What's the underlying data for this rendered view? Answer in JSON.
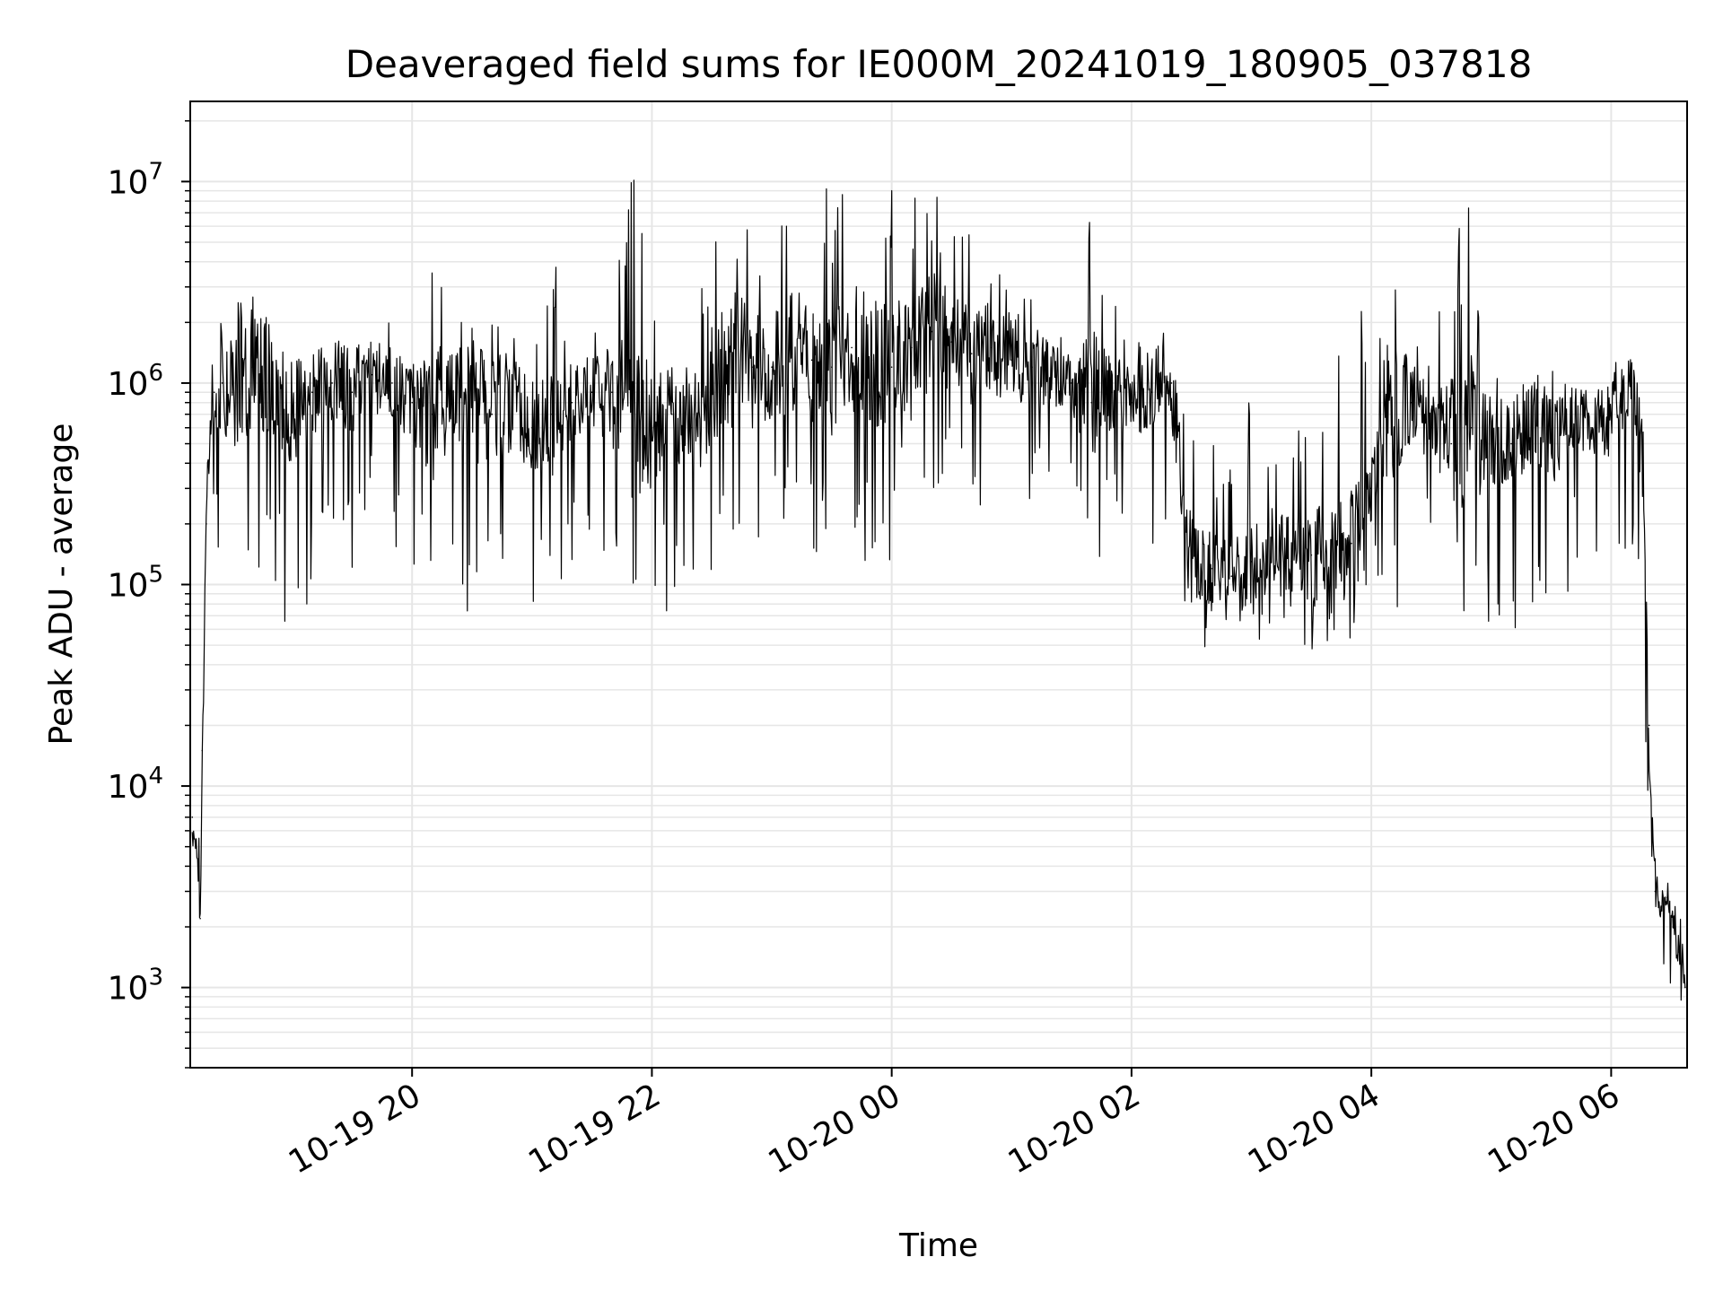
{
  "chart_data": {
    "type": "line",
    "title": "Deaveraged field sums for IE000M_20241019_180905_037818",
    "xlabel": "Time",
    "ylabel": "Peak ADU - average",
    "yscale": "log",
    "ylim": [
      400,
      25000000
    ],
    "xlim": [
      "2024-10-19 18:09",
      "2024-10-20 06:38"
    ],
    "xticks": [
      {
        "value": "2024-10-19 20:00",
        "label": "10-19 20"
      },
      {
        "value": "2024-10-19 22:00",
        "label": "10-19 22"
      },
      {
        "value": "2024-10-20 00:00",
        "label": "10-20 00"
      },
      {
        "value": "2024-10-20 02:00",
        "label": "10-20 02"
      },
      {
        "value": "2024-10-20 04:00",
        "label": "10-20 04"
      },
      {
        "value": "2024-10-20 06:00",
        "label": "10-20 06"
      }
    ],
    "yticks": [
      {
        "value": 1000,
        "base": "10",
        "exp": "3"
      },
      {
        "value": 10000,
        "base": "10",
        "exp": "4"
      },
      {
        "value": 100000,
        "base": "10",
        "exp": "5"
      },
      {
        "value": 1000000,
        "base": "10",
        "exp": "6"
      },
      {
        "value": 10000000,
        "base": "10",
        "exp": "7"
      }
    ],
    "grid": true,
    "line_color": "#000000",
    "grid_color": "#e6e6e6",
    "series": [
      {
        "x": [
          "2024-10-19 18:10",
          "2024-10-19 18:12",
          "2024-10-19 18:14",
          "2024-10-19 18:15",
          "2024-10-19 18:17",
          "2024-10-19 18:19",
          "2024-10-19 18:21",
          "2024-10-19 18:25",
          "2024-10-19 18:30",
          "2024-10-19 18:40",
          "2024-10-19 18:50",
          "2024-10-19 19:00",
          "2024-10-19 19:10",
          "2024-10-19 19:20",
          "2024-10-19 19:30",
          "2024-10-19 19:40",
          "2024-10-19 19:50",
          "2024-10-19 20:00",
          "2024-10-19 20:10",
          "2024-10-19 20:20",
          "2024-10-19 20:30",
          "2024-10-19 20:40",
          "2024-10-19 20:50",
          "2024-10-19 21:00",
          "2024-10-19 21:10",
          "2024-10-19 21:20",
          "2024-10-19 21:30",
          "2024-10-19 21:40",
          "2024-10-19 21:50",
          "2024-10-19 22:00",
          "2024-10-19 22:10",
          "2024-10-19 22:20",
          "2024-10-19 22:30",
          "2024-10-19 22:40",
          "2024-10-19 22:50",
          "2024-10-19 23:00",
          "2024-10-19 23:10",
          "2024-10-19 23:20",
          "2024-10-19 23:30",
          "2024-10-19 23:40",
          "2024-10-19 23:50",
          "2024-10-20 00:00",
          "2024-10-20 00:10",
          "2024-10-20 00:20",
          "2024-10-20 00:30",
          "2024-10-20 00:40",
          "2024-10-20 00:50",
          "2024-10-20 01:00",
          "2024-10-20 01:10",
          "2024-10-20 01:20",
          "2024-10-20 01:30",
          "2024-10-20 01:40",
          "2024-10-20 01:50",
          "2024-10-20 02:00",
          "2024-10-20 02:10",
          "2024-10-20 02:20",
          "2024-10-20 02:30",
          "2024-10-20 02:40",
          "2024-10-20 02:50",
          "2024-10-20 03:00",
          "2024-10-20 03:10",
          "2024-10-20 03:20",
          "2024-10-20 03:30",
          "2024-10-20 03:40",
          "2024-10-20 03:50",
          "2024-10-20 04:00",
          "2024-10-20 04:10",
          "2024-10-20 04:20",
          "2024-10-20 04:30",
          "2024-10-20 04:40",
          "2024-10-20 04:50",
          "2024-10-20 05:00",
          "2024-10-20 05:10",
          "2024-10-20 05:20",
          "2024-10-20 05:30",
          "2024-10-20 05:40",
          "2024-10-20 05:50",
          "2024-10-20 06:00",
          "2024-10-20 06:05",
          "2024-10-20 06:10",
          "2024-10-20 06:13",
          "2024-10-20 06:16",
          "2024-10-20 06:19",
          "2024-10-20 06:22",
          "2024-10-20 06:25",
          "2024-10-20 06:28",
          "2024-10-20 06:31",
          "2024-10-20 06:34",
          "2024-10-20 06:37"
        ],
        "y": [
          7000,
          5000,
          2200,
          15000,
          200000,
          600000,
          900000,
          1000000,
          900000,
          1200000,
          1000000,
          700000,
          900000,
          1000000,
          900000,
          1100000,
          1000000,
          800000,
          700000,
          900000,
          800000,
          700000,
          800000,
          600000,
          700000,
          800000,
          900000,
          900000,
          700000,
          600000,
          700000,
          600000,
          900000,
          1300000,
          1200000,
          1200000,
          1400000,
          1300000,
          1200000,
          1500000,
          1300000,
          1200000,
          1500000,
          1800000,
          1600000,
          1400000,
          1500000,
          1300000,
          1200000,
          1100000,
          1000000,
          800000,
          900000,
          800000,
          900000,
          1000000,
          130000,
          120000,
          110000,
          130000,
          150000,
          130000,
          140000,
          150000,
          160000,
          300000,
          700000,
          800000,
          600000,
          500000,
          600000,
          500000,
          500000,
          600000,
          500000,
          700000,
          600000,
          700000,
          900000,
          900000,
          700000,
          300000,
          20000,
          3000,
          2500,
          2800,
          2000,
          1500,
          1000
        ],
        "ymax": [
          7000,
          8000,
          9000,
          15000,
          400000,
          1000000,
          2000000,
          3300000,
          2500000,
          3800000,
          1800000,
          1700000,
          1400000,
          1600000,
          2000000,
          2000000,
          2500000,
          1500000,
          8800000,
          2000000,
          2500000,
          3000000,
          2000000,
          1500000,
          5500000,
          1500000,
          1700000,
          2800000,
          15000000,
          3000000,
          1500000,
          1300000,
          7000000,
          7500000,
          7000000,
          8000000,
          11000000,
          8000000,
          10000000,
          9000000,
          11000000,
          10000000,
          8000000,
          13000000,
          9000000,
          6000000,
          4000000,
          3000000,
          2700000,
          2500000,
          2300000,
          11000000,
          2500000,
          2500000,
          2300000,
          1800000,
          900000,
          500000,
          650000,
          900000,
          750000,
          800000,
          1100000,
          1500000,
          5000000,
          1200000,
          5300000,
          2000000,
          1300000,
          5200000,
          8300000,
          1300000,
          1400000,
          1400000,
          1300000,
          1000000,
          1100000,
          1300000,
          1400000,
          1300000,
          1000000,
          900000,
          12000,
          4500,
          4000,
          3500,
          3000,
          2500,
          2000
        ],
        "ymin": [
          5000,
          3500,
          2000,
          10000,
          150000,
          300000,
          200000,
          60000,
          60000,
          60000,
          60000,
          60000,
          70000,
          90000,
          100000,
          200000,
          150000,
          100000,
          80000,
          100000,
          60000,
          55000,
          90000,
          80000,
          90000,
          120000,
          200000,
          80000,
          60000,
          60000,
          70000,
          65000,
          80000,
          70000,
          100000,
          200000,
          200000,
          110000,
          100000,
          100000,
          150000,
          130000,
          300000,
          250000,
          300000,
          200000,
          200000,
          150000,
          250000,
          300000,
          350000,
          80000,
          250000,
          180000,
          100000,
          120000,
          50000,
          48000,
          55000,
          55000,
          50000,
          42000,
          46000,
          48000,
          50000,
          100000,
          60000,
          80000,
          200000,
          60000,
          50000,
          65000,
          60000,
          50000,
          58000,
          100000,
          180000,
          80000,
          90000,
          100000,
          70000,
          20000,
          5000,
          1800,
          1300,
          1000,
          900,
          800,
          800
        ]
      }
    ]
  }
}
